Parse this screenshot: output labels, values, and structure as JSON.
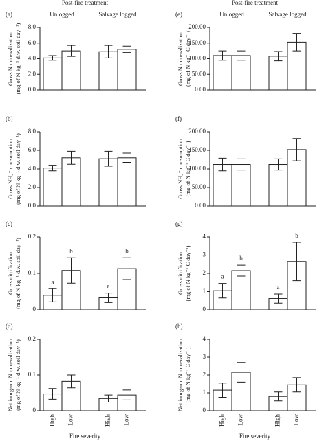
{
  "chart_data": [
    {
      "type": "bar",
      "title": "(a)",
      "supertitle": "Post-fire treatment",
      "groups": [
        "Unlogged",
        "Salvage logged"
      ],
      "ylabel": [
        "Gross N mineralization",
        "(mg of N kg⁻¹ d.w. soil day⁻¹)"
      ],
      "values": [
        4.1,
        5.0,
        4.9,
        5.2
      ],
      "errors": [
        0.3,
        0.7,
        0.8,
        0.4
      ],
      "color": "#ffffff",
      "ylim": [
        0,
        8
      ],
      "yticks": [
        {
          "value": 0,
          "label": "0.0"
        },
        {
          "value": 2,
          "label": "2.0"
        },
        {
          "value": 4,
          "label": "4.0"
        },
        {
          "value": 6,
          "label": "6.0"
        },
        {
          "value": 8,
          "label": "8.0"
        }
      ]
    },
    {
      "type": "bar",
      "title": "(b)",
      "ylabel": [
        "Gross NH₄⁺ consumption",
        "(mg of N kg⁻¹ d.w. soil day⁻¹)"
      ],
      "values": [
        4.1,
        5.2,
        5.1,
        5.2
      ],
      "errors": [
        0.3,
        0.7,
        0.8,
        0.5
      ],
      "color": "#ffffff",
      "ylim": [
        0,
        8
      ],
      "yticks": [
        {
          "value": 0,
          "label": "0.0"
        },
        {
          "value": 2,
          "label": "2.0"
        },
        {
          "value": 4,
          "label": "4.0"
        },
        {
          "value": 6,
          "label": "6.0"
        },
        {
          "value": 8,
          "label": "8.0"
        }
      ]
    },
    {
      "type": "bar",
      "title": "(c)",
      "ylabel": [
        "Gross nitrification",
        "(mg of N kg⁻¹ d.w. soil day⁻¹)"
      ],
      "values": [
        0.04,
        0.108,
        0.033,
        0.113
      ],
      "errors": [
        0.018,
        0.035,
        0.013,
        0.03
      ],
      "annotations": [
        "a",
        "b",
        "a",
        "b"
      ],
      "color": "#ffffff",
      "ylim": [
        0,
        0.2
      ],
      "yticks": [
        0,
        0.1,
        0.2
      ]
    },
    {
      "type": "bar",
      "title": "(d)",
      "categories": [
        "High",
        "Low",
        "High",
        "Low"
      ],
      "xlabel": "Fire severity",
      "ylabel": [
        "Net inorganic N mineralization",
        "(mg of N kg⁻¹ d.w. soil day⁻¹)"
      ],
      "values": [
        0.047,
        0.082,
        0.034,
        0.044
      ],
      "errors": [
        0.015,
        0.018,
        0.01,
        0.014
      ],
      "color": "#ffffff",
      "ylim": [
        0,
        0.2
      ],
      "yticks": [
        0,
        0.1,
        0.2
      ]
    },
    {
      "type": "bar",
      "title": "(e)",
      "supertitle": "Post-fire treatment",
      "groups": [
        "Unlogged",
        "Salvage logged"
      ],
      "ylabel": [
        "Gross N mineralization",
        "(mg of N kg⁻¹ C day⁻¹)"
      ],
      "values": [
        110,
        110,
        108,
        153
      ],
      "errors": [
        15,
        15,
        15,
        28
      ],
      "color": "#ffffff",
      "ylim": [
        0,
        200
      ],
      "yticks": [
        {
          "value": 0,
          "label": "0.00"
        },
        {
          "value": 50,
          "label": "50.00"
        },
        {
          "value": 100,
          "label": "100.00"
        },
        {
          "value": 150,
          "label": "150.00"
        },
        {
          "value": 200,
          "label": "200.00"
        }
      ]
    },
    {
      "type": "bar",
      "title": "(f)",
      "ylabel": [
        "Gross NH₄⁺ consumption",
        "(mg of N kg⁻¹ C day⁻¹)"
      ],
      "values": [
        112,
        112,
        112,
        152
      ],
      "errors": [
        17,
        15,
        15,
        30
      ],
      "color": "#ffffff",
      "ylim": [
        0,
        200
      ],
      "yticks": [
        {
          "value": 0,
          "label": "0.00"
        },
        {
          "value": 50,
          "label": "50.00"
        },
        {
          "value": 100,
          "label": "100.00"
        },
        {
          "value": 150,
          "label": "150.00"
        },
        {
          "value": 200,
          "label": "200.00"
        }
      ]
    },
    {
      "type": "bar",
      "title": "(g)",
      "ylabel": [
        "Gross nitrification",
        "(mg of N kg⁻¹ C day⁻¹)"
      ],
      "values": [
        1.05,
        2.15,
        0.62,
        2.65
      ],
      "errors": [
        0.4,
        0.3,
        0.25,
        1.05
      ],
      "annotations": [
        "a",
        "b",
        "a",
        "b"
      ],
      "color": "#ffffff",
      "ylim": [
        0,
        4
      ],
      "yticks": [
        0,
        1,
        2,
        3,
        4
      ]
    },
    {
      "type": "bar",
      "title": "(h)",
      "categories": [
        "High",
        "Low",
        "High",
        "Low"
      ],
      "xlabel": "Fire severity",
      "ylabel": [
        "Net inorganic N mineralization",
        "(mg of N kg⁻¹ C day⁻¹)"
      ],
      "values": [
        1.15,
        2.15,
        0.8,
        1.45
      ],
      "errors": [
        0.4,
        0.55,
        0.25,
        0.4
      ],
      "color": "#ffffff",
      "ylim": [
        0,
        4
      ],
      "yticks": [
        0,
        1,
        2,
        3,
        4
      ]
    }
  ]
}
